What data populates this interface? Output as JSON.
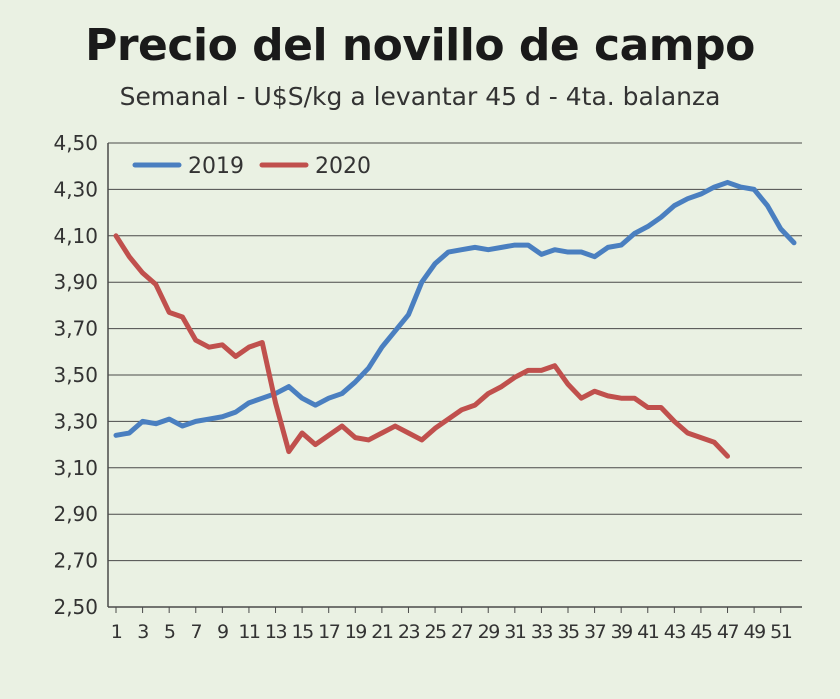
{
  "chart_data": {
    "type": "line",
    "title": "Precio del novillo de campo",
    "subtitle": "Semanal - U$S/kg a levantar 45 d - 4ta. balanza",
    "xlabel": "",
    "ylabel": "",
    "ylim": [
      2.5,
      4.5
    ],
    "y_ticks": [
      "4,50",
      "4,30",
      "4,10",
      "3,90",
      "3,70",
      "3,50",
      "3,30",
      "3,10",
      "2,90",
      "2,70",
      "2,50"
    ],
    "y_tick_values": [
      4.5,
      4.3,
      4.1,
      3.9,
      3.7,
      3.5,
      3.3,
      3.1,
      2.9,
      2.7,
      2.5
    ],
    "x_range": [
      1,
      52
    ],
    "x_ticks": [
      "1",
      "3",
      "5",
      "7",
      "9",
      "11",
      "13",
      "15",
      "17",
      "19",
      "21",
      "23",
      "25",
      "27",
      "29",
      "31",
      "33",
      "35",
      "37",
      "39",
      "41",
      "43",
      "45",
      "47",
      "49",
      "51"
    ],
    "x_tick_values": [
      1,
      3,
      5,
      7,
      9,
      11,
      13,
      15,
      17,
      19,
      21,
      23,
      25,
      27,
      29,
      31,
      33,
      35,
      37,
      39,
      41,
      43,
      45,
      47,
      49,
      51
    ],
    "grid": true,
    "legend_position": "top-left",
    "series": [
      {
        "name": "2019",
        "color": "#4a7fc0",
        "x": [
          1,
          2,
          3,
          4,
          5,
          6,
          7,
          8,
          9,
          10,
          11,
          12,
          13,
          14,
          15,
          16,
          17,
          18,
          19,
          20,
          21,
          22,
          23,
          24,
          25,
          26,
          27,
          28,
          29,
          30,
          31,
          32,
          33,
          34,
          35,
          36,
          37,
          38,
          39,
          40,
          41,
          42,
          43,
          44,
          45,
          46,
          47,
          48,
          49,
          50,
          51,
          52
        ],
        "values": [
          3.24,
          3.25,
          3.3,
          3.29,
          3.31,
          3.28,
          3.3,
          3.31,
          3.32,
          3.34,
          3.38,
          3.4,
          3.42,
          3.45,
          3.4,
          3.37,
          3.4,
          3.42,
          3.47,
          3.53,
          3.62,
          3.69,
          3.76,
          3.9,
          3.98,
          4.03,
          4.04,
          4.05,
          4.04,
          4.05,
          4.06,
          4.06,
          4.02,
          4.04,
          4.03,
          4.03,
          4.01,
          4.05,
          4.06,
          4.11,
          4.14,
          4.18,
          4.23,
          4.26,
          4.28,
          4.31,
          4.33,
          4.31,
          4.3,
          4.23,
          4.13,
          4.07
        ]
      },
      {
        "name": "2020",
        "color": "#c0504d",
        "x": [
          1,
          2,
          3,
          4,
          5,
          6,
          7,
          8,
          9,
          10,
          11,
          12,
          13,
          14,
          15,
          16,
          17,
          18,
          19,
          20,
          21,
          22,
          23,
          24,
          25,
          26,
          27,
          28,
          29,
          30,
          31,
          32,
          33,
          34,
          35,
          36,
          37,
          38,
          39,
          40,
          41,
          42,
          43,
          44,
          45,
          46,
          47
        ],
        "values": [
          4.1,
          4.01,
          3.94,
          3.89,
          3.77,
          3.75,
          3.65,
          3.62,
          3.63,
          3.58,
          3.62,
          3.64,
          3.38,
          3.17,
          3.25,
          3.2,
          3.24,
          3.28,
          3.23,
          3.22,
          3.25,
          3.28,
          3.25,
          3.22,
          3.27,
          3.31,
          3.35,
          3.37,
          3.42,
          3.45,
          3.49,
          3.52,
          3.52,
          3.54,
          3.46,
          3.4,
          3.43,
          3.41,
          3.4,
          3.4,
          3.36,
          3.36,
          3.3,
          3.25,
          3.23,
          3.21,
          3.15
        ]
      }
    ]
  },
  "colors": {
    "background": "#eaf1e3",
    "grid": "#4a4a4a"
  }
}
